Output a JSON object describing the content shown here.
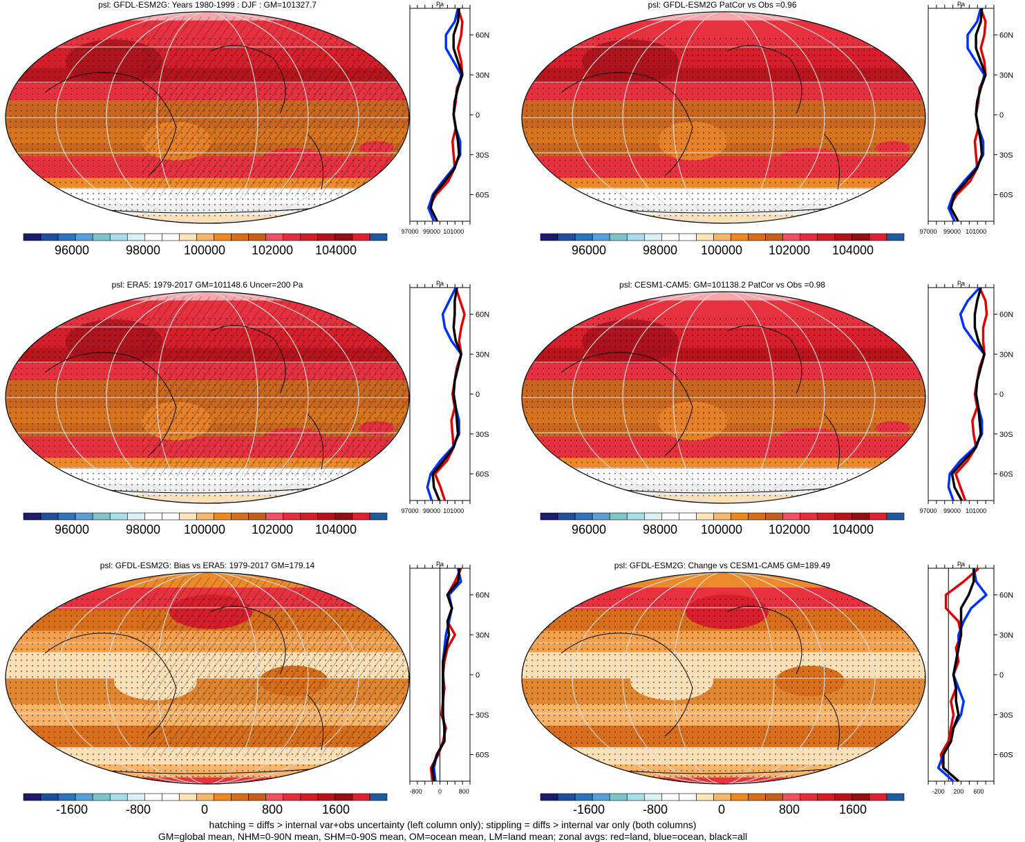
{
  "panels": [
    {
      "id": "p1",
      "title": "psl: GFDL-ESM2G: Years 1980-1999 : DJF : GM=101327.7",
      "scheme": "abs",
      "hatch": true,
      "colorbar_labels": [
        "96000",
        "98000",
        "100000",
        "102000",
        "104000"
      ],
      "profile_xticks": [
        "97000",
        "99000",
        "101000"
      ]
    },
    {
      "id": "p2",
      "title": "psl: GFDL-ESM2G PatCor vs Obs =0.96",
      "scheme": "abs",
      "hatch": false,
      "colorbar_labels": [
        "96000",
        "98000",
        "100000",
        "102000",
        "104000"
      ],
      "profile_xticks": [
        "97000",
        "99000",
        "101000"
      ]
    },
    {
      "id": "p3",
      "title": "psl: ERA5: 1979-2017 GM=101148.6 Uncer=200 Pa",
      "scheme": "abs",
      "hatch": true,
      "colorbar_labels": [
        "96000",
        "98000",
        "100000",
        "102000",
        "104000"
      ],
      "profile_xticks": [
        "97000",
        "99000",
        "101000"
      ]
    },
    {
      "id": "p4",
      "title": "psl: CESM1-CAM5: GM=101138.2 PatCor vs Obs =0.98",
      "scheme": "abs",
      "hatch": false,
      "colorbar_labels": [
        "96000",
        "98000",
        "100000",
        "102000",
        "104000"
      ],
      "profile_xticks": [
        "97000",
        "99000",
        "101000"
      ]
    },
    {
      "id": "p5",
      "title": "psl: GFDL-ESM2G: Bias vs ERA5: 1979-2017 GM=179.14",
      "scheme": "diff",
      "hatch": true,
      "colorbar_labels": [
        "-1600",
        "-800",
        "0",
        "800",
        "1600"
      ],
      "profile_xticks": [
        "-800",
        "0",
        "800"
      ]
    },
    {
      "id": "p6",
      "title": "psl: GFDL-ESM2G: Change vs CESM1-CAM5 GM=189.49",
      "scheme": "diff",
      "hatch": false,
      "colorbar_labels": [
        "-1600",
        "-800",
        "0",
        "800",
        "1600"
      ],
      "profile_xticks": [
        "-200",
        "200",
        "600"
      ]
    }
  ],
  "profile_unit": "Pa",
  "latitude_ticks": [
    "60N",
    "30N",
    "0",
    "30S",
    "60S"
  ],
  "palette": [
    "#1b1b6b",
    "#1f4e9c",
    "#2d74bd",
    "#5a9fd6",
    "#7fc4c8",
    "#a8dce6",
    "#d9f0f5",
    "#ffffff",
    "#ffffff",
    "#fde3b8",
    "#f6b66b",
    "#ec8a1e",
    "#d86d1a",
    "#c4601c",
    "#f05060",
    "#e62d3c",
    "#d41c24",
    "#b8111a",
    "#940f14",
    "#e02030",
    "#1f5a9e"
  ],
  "chart_data": [
    {
      "type": "line",
      "panel": "p1",
      "title": "psl: GFDL-ESM2G: Years 1980-1999 : DJF : GM=101327.7",
      "xlabel": "Pa",
      "lat": [
        80,
        70,
        60,
        50,
        40,
        30,
        20,
        10,
        0,
        -10,
        -20,
        -30,
        -40,
        -50,
        -60,
        -70,
        -80
      ],
      "series": [
        {
          "name": "land",
          "color": "#e00000",
          "values": [
            101400,
            101800,
            101700,
            101400,
            101700,
            101800,
            101300,
            101200,
            101000,
            101200,
            100900,
            101000,
            101100,
            100500,
            99400,
            98700,
            99200
          ]
        },
        {
          "name": "ocean",
          "color": "#0030ff",
          "values": [
            101400,
            101100,
            100300,
            100300,
            101000,
            101700,
            101400,
            101100,
            101000,
            101200,
            101600,
            101600,
            101000,
            100000,
            99100,
            98700,
            99200
          ]
        },
        {
          "name": "all",
          "color": "#000000",
          "values": [
            101500,
            101400,
            101000,
            101000,
            101400,
            101800,
            101400,
            101100,
            101000,
            101200,
            101400,
            101500,
            101100,
            100200,
            99200,
            98900,
            99500
          ]
        }
      ]
    },
    {
      "type": "line",
      "panel": "p2",
      "title": "psl: GFDL-ESM2G PatCor vs Obs =0.96",
      "xlabel": "Pa",
      "lat": [
        80,
        70,
        60,
        50,
        40,
        30,
        20,
        10,
        0,
        -10,
        -20,
        -30,
        -40,
        -50,
        -60,
        -70,
        -80
      ],
      "series": [
        {
          "name": "land",
          "color": "#e00000",
          "values": [
            101400,
            101800,
            101700,
            101400,
            101700,
            101800,
            101300,
            101200,
            101000,
            101200,
            100900,
            101000,
            101100,
            100500,
            99400,
            98700,
            99200
          ]
        },
        {
          "name": "ocean",
          "color": "#0030ff",
          "values": [
            101400,
            101100,
            100300,
            100300,
            101000,
            101700,
            101400,
            101100,
            101000,
            101200,
            101600,
            101600,
            101000,
            100000,
            99100,
            98700,
            99200
          ]
        },
        {
          "name": "all",
          "color": "#000000",
          "values": [
            101500,
            101400,
            101000,
            101000,
            101400,
            101800,
            101400,
            101100,
            101000,
            101200,
            101400,
            101500,
            101100,
            100200,
            99200,
            98900,
            99500
          ]
        }
      ]
    },
    {
      "type": "line",
      "panel": "p3",
      "title": "psl: ERA5: 1979-2017 GM=101148.6 Uncer=200 Pa",
      "xlabel": "Pa",
      "lat": [
        80,
        70,
        60,
        50,
        40,
        30,
        20,
        10,
        0,
        -10,
        -20,
        -30,
        -40,
        -50,
        -60,
        -70,
        -80
      ],
      "series": [
        {
          "name": "land",
          "color": "#e00000",
          "values": [
            101200,
            101600,
            102000,
            101700,
            101500,
            101700,
            101300,
            101100,
            100900,
            101100,
            100800,
            100900,
            101000,
            100400,
            99300,
            99800,
            100200
          ]
        },
        {
          "name": "ocean",
          "color": "#0030ff",
          "values": [
            101200,
            100600,
            100000,
            100200,
            100800,
            101700,
            101400,
            101100,
            101000,
            101200,
            101500,
            101500,
            100900,
            99800,
            98900,
            98600,
            99000
          ]
        },
        {
          "name": "all",
          "color": "#000000",
          "values": [
            101300,
            101100,
            101100,
            101000,
            101200,
            101700,
            101400,
            101100,
            101000,
            101200,
            101300,
            101400,
            101000,
            100100,
            99100,
            99200,
            99700
          ]
        }
      ]
    },
    {
      "type": "line",
      "panel": "p4",
      "title": "psl: CESM1-CAM5: GM=101138.2 PatCor vs Obs =0.98",
      "xlabel": "Pa",
      "lat": [
        80,
        70,
        60,
        50,
        40,
        30,
        20,
        10,
        0,
        -10,
        -20,
        -30,
        -40,
        -50,
        -60,
        -70,
        -80
      ],
      "series": [
        {
          "name": "land",
          "color": "#e00000",
          "values": [
            101300,
            101800,
            101900,
            101600,
            101600,
            101700,
            101300,
            101100,
            100900,
            101100,
            100700,
            100800,
            101000,
            100300,
            99300,
            99700,
            100100
          ]
        },
        {
          "name": "ocean",
          "color": "#0030ff",
          "values": [
            101300,
            100300,
            99700,
            100000,
            100800,
            101700,
            101400,
            101100,
            101000,
            101200,
            101500,
            101500,
            100900,
            99700,
            98800,
            98700,
            99100
          ]
        },
        {
          "name": "all",
          "color": "#000000",
          "values": [
            101400,
            101100,
            100900,
            100900,
            101200,
            101700,
            101400,
            101100,
            101000,
            101200,
            101300,
            101400,
            101000,
            100000,
            99000,
            99200,
            99800
          ]
        }
      ]
    },
    {
      "type": "line",
      "panel": "p5",
      "title": "psl: GFDL-ESM2G: Bias vs ERA5: 1979-2017 GM=179.14",
      "xlabel": "Pa",
      "lat": [
        80,
        70,
        60,
        50,
        40,
        30,
        20,
        10,
        0,
        -10,
        -20,
        -30,
        -40,
        -50,
        -60,
        -70,
        -80
      ],
      "series": [
        {
          "name": "land",
          "color": "#e00000",
          "values": [
            700,
            500,
            250,
            400,
            250,
            500,
            250,
            150,
            100,
            150,
            100,
            50,
            200,
            100,
            -50,
            -300,
            -250
          ]
        },
        {
          "name": "ocean",
          "color": "#0030ff",
          "values": [
            600,
            700,
            300,
            400,
            300,
            200,
            150,
            100,
            100,
            100,
            100,
            100,
            150,
            150,
            -100,
            -200,
            -150
          ]
        },
        {
          "name": "all",
          "color": "#000000",
          "values": [
            650,
            600,
            250,
            400,
            250,
            300,
            200,
            100,
            100,
            100,
            100,
            100,
            150,
            150,
            -100,
            -250,
            -200
          ]
        }
      ]
    },
    {
      "type": "line",
      "panel": "p6",
      "title": "psl: GFDL-ESM2G: Change vs CESM1-CAM5 GM=189.49",
      "xlabel": "Pa",
      "lat": [
        80,
        70,
        60,
        50,
        40,
        30,
        20,
        10,
        0,
        -10,
        -20,
        -30,
        -40,
        -50,
        -60,
        -70,
        -80
      ],
      "series": [
        {
          "name": "land",
          "color": "#e00000",
          "values": [
            600,
            300,
            -50,
            -50,
            200,
            250,
            150,
            200,
            100,
            150,
            50,
            100,
            50,
            0,
            -150,
            -100,
            200
          ]
        },
        {
          "name": "ocean",
          "color": "#0030ff",
          "values": [
            500,
            550,
            750,
            450,
            300,
            200,
            200,
            150,
            100,
            200,
            300,
            250,
            100,
            50,
            -100,
            -200,
            100
          ]
        },
        {
          "name": "all",
          "color": "#000000",
          "values": [
            500,
            500,
            400,
            250,
            250,
            250,
            200,
            150,
            100,
            150,
            150,
            200,
            100,
            50,
            -100,
            -100,
            200
          ]
        }
      ]
    }
  ],
  "footer": {
    "line1": "hatching = diffs > internal var+obs uncertainty (left column only); stippling = diffs > internal var only (both columns)",
    "line2": "GM=global mean, NHM=0-90N mean, SHM=0-90S mean, OM=ocean mean, LM=land mean; zonal avgs: red=land, blue=ocean, black=all"
  }
}
